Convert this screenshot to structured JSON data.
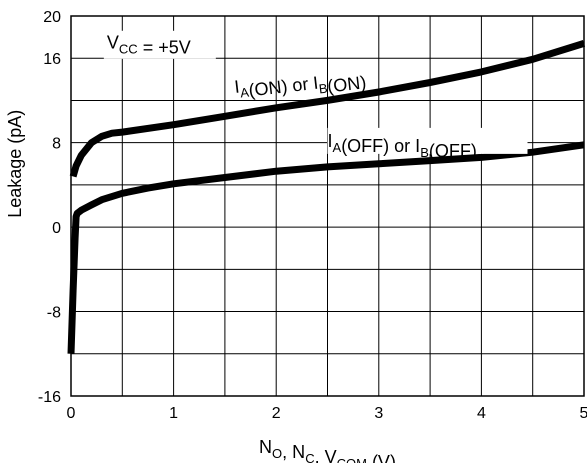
{
  "chart_data": {
    "type": "line",
    "xlabel": {
      "parts": [
        {
          "t": "N",
          "sub": "O"
        },
        {
          "t": ", N",
          "sub": "C"
        },
        {
          "t": ", V",
          "sub": "COM"
        },
        {
          "t": " (V)",
          "sub": ""
        }
      ]
    },
    "ylabel": "Leakage  (pA)",
    "xlim": [
      0,
      5
    ],
    "ylim": [
      -16,
      20
    ],
    "grid": true,
    "x_ticks": [
      "0",
      "1",
      "2",
      "3",
      "4",
      "5"
    ],
    "x_tick_values": [
      0,
      1,
      2,
      3,
      4,
      5
    ],
    "y_ticks": [
      "20",
      "16",
      "8",
      "0",
      "-8",
      "-16"
    ],
    "y_tick_values": [
      20,
      16,
      8,
      0,
      -8,
      -16
    ],
    "annotations": {
      "vcc": {
        "parts": [
          {
            "t": "V",
            "sub": "CC"
          },
          {
            "t": " = +5V",
            "sub": ""
          }
        ]
      },
      "on": {
        "parts": [
          {
            "t": "I",
            "sub": "A"
          },
          {
            "t": "(ON) or I",
            "sub": "B"
          },
          {
            "t": "(ON)",
            "sub": ""
          }
        ]
      },
      "off": {
        "parts": [
          {
            "t": "I",
            "sub": "A"
          },
          {
            "t": "(OFF) or I",
            "sub": "B"
          },
          {
            "t": "(OFF)",
            "sub": ""
          }
        ]
      }
    },
    "series": [
      {
        "color": "#000000",
        "x": [
          0.02,
          0.05,
          0.1,
          0.2,
          0.3,
          0.4,
          0.5,
          1.0,
          1.5,
          2.0,
          2.5,
          3.0,
          3.5,
          4.0,
          4.5,
          5.0
        ],
        "y": [
          4.8,
          5.8,
          6.8,
          8.0,
          8.6,
          8.9,
          9.0,
          9.7,
          10.5,
          11.3,
          12.0,
          12.8,
          13.7,
          14.7,
          15.9,
          17.4
        ]
      },
      {
        "color": "#000000",
        "x": [
          0.0,
          0.02,
          0.04,
          0.05,
          0.06,
          0.1,
          0.2,
          0.3,
          0.5,
          0.75,
          1.0,
          1.5,
          2.0,
          2.5,
          3.0,
          3.5,
          4.0,
          4.5,
          5.0
        ],
        "y": [
          -12.0,
          -6.0,
          -1.0,
          1.0,
          1.3,
          1.6,
          2.1,
          2.6,
          3.2,
          3.7,
          4.1,
          4.7,
          5.3,
          5.7,
          6.0,
          6.3,
          6.6,
          7.1,
          7.8
        ]
      }
    ]
  }
}
